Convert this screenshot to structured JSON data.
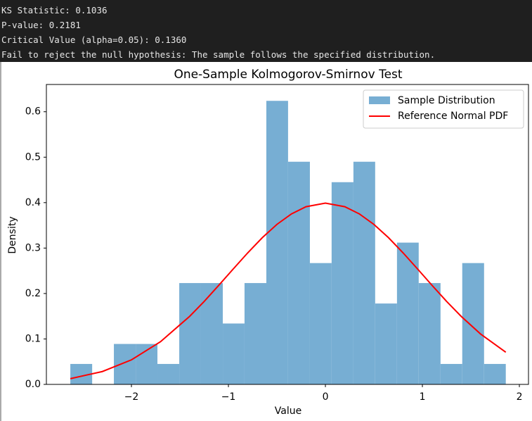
{
  "console": {
    "lines": [
      "KS Statistic: 0.1036",
      "P-value: 0.2181",
      "Critical Value (alpha=0.05): 0.1360",
      "Fail to reject the null hypothesis: The sample follows the specified distribution."
    ]
  },
  "chart_data": {
    "type": "histogram",
    "title": "One-Sample Kolmogorov-Smirnov Test",
    "x_label": "Value",
    "y_label": "Density",
    "name": "Sample Distribution",
    "color": "#77aed3",
    "bins": [
      -2.63,
      -2.405,
      -2.181,
      -1.956,
      -1.732,
      -1.507,
      -1.283,
      -1.058,
      -0.834,
      -0.609,
      -0.385,
      -0.16,
      0.064,
      0.289,
      0.513,
      0.738,
      0.962,
      1.187,
      1.411,
      1.636,
      1.86
    ],
    "values": [
      0.045,
      0,
      0.089,
      0.089,
      0.045,
      0.223,
      0.223,
      0.134,
      0.223,
      0.624,
      0.49,
      0.267,
      0.445,
      0.49,
      0.178,
      0.312,
      0.223,
      0.045,
      0.267,
      0.045
    ],
    "curve": {
      "name": "Reference Normal PDF",
      "color": "#ff0000",
      "x": [
        -2.63,
        -2.3,
        -2.0,
        -1.7,
        -1.4,
        -1.25,
        -1.1,
        -0.95,
        -0.8,
        -0.65,
        -0.5,
        -0.35,
        -0.2,
        0,
        0.2,
        0.35,
        0.5,
        0.65,
        0.8,
        0.95,
        1.1,
        1.25,
        1.4,
        1.6,
        1.86
      ],
      "values": [
        0.0126,
        0.0283,
        0.054,
        0.094,
        0.1497,
        0.1826,
        0.2179,
        0.2541,
        0.2897,
        0.323,
        0.3521,
        0.3752,
        0.391,
        0.3989,
        0.391,
        0.3752,
        0.3521,
        0.323,
        0.2897,
        0.2541,
        0.2179,
        0.1826,
        0.1497,
        0.1109,
        0.0707
      ]
    },
    "xlim": [
      -2.877,
      2.094
    ],
    "ylim": [
      0,
      0.66
    ],
    "xticks": [
      {
        "value": -2,
        "label": "−2"
      },
      {
        "value": -1,
        "label": "−1"
      },
      0,
      1,
      2
    ],
    "yticks": [
      {
        "value": 0,
        "label": "0.0"
      },
      0.1,
      0.2,
      0.3,
      0.4,
      0.5,
      0.6
    ],
    "legend": "upper right"
  }
}
